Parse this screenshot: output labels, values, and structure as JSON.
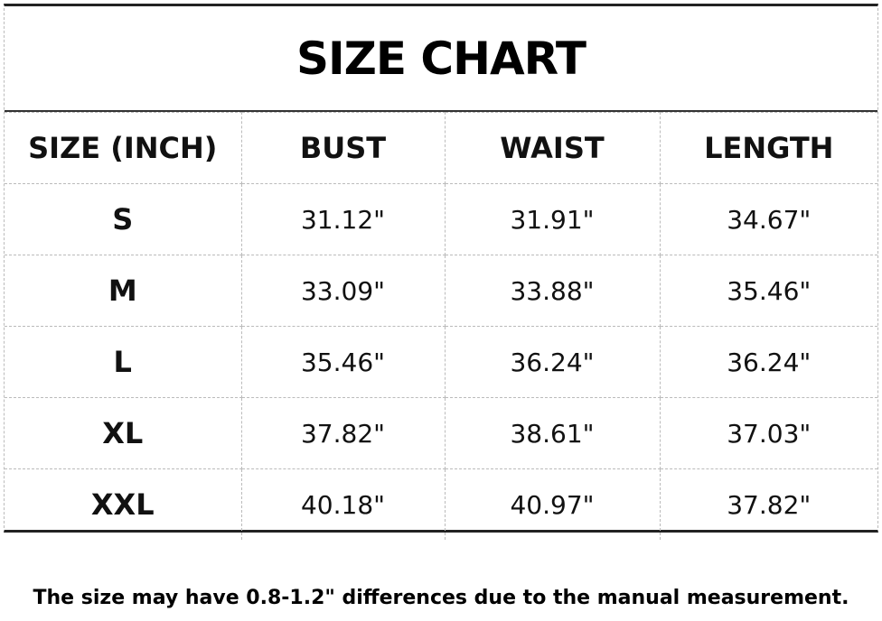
{
  "title": "SIZE CHART",
  "table": {
    "header": [
      "SIZE (INCH)",
      "BUST",
      "WAIST",
      "LENGTH"
    ],
    "rows": [
      [
        "S",
        "31.12\"",
        "31.91\"",
        "34.67\""
      ],
      [
        "M",
        "33.09\"",
        "33.88\"",
        "35.46\""
      ],
      [
        "L",
        "35.46\"",
        "36.24\"",
        "36.24\""
      ],
      [
        "XL",
        "37.82\"",
        "38.61\"",
        "37.03\""
      ],
      [
        "XXL",
        "40.18\"",
        "40.97\"",
        "37.82\""
      ]
    ]
  },
  "note": "The size may have 0.8-1.2\" differences due to the manual measurement."
}
